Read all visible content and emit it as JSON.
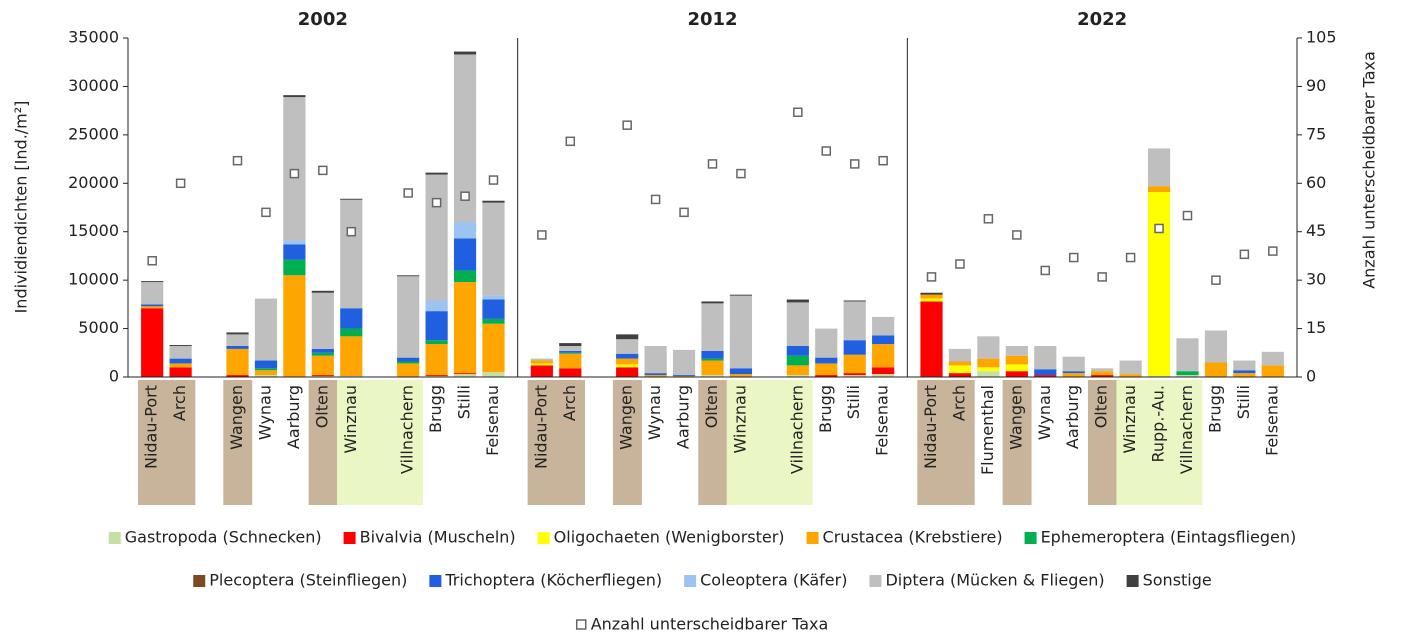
{
  "chart_data": {
    "type": "bar",
    "stacked": true,
    "ylabel": "Individiendichten [Ind./m²]",
    "y2label": "Anzahl unterscheidbarer Taxa",
    "ylim": [
      0,
      35000
    ],
    "yticks": [
      0,
      5000,
      10000,
      15000,
      20000,
      25000,
      30000,
      35000
    ],
    "y2lim": [
      0,
      105
    ],
    "y2ticks": [
      0,
      15,
      30,
      45,
      60,
      75,
      90,
      105
    ],
    "series": [
      {
        "name": "Gastropoda (Schnecken)",
        "color": "#c5e0a5"
      },
      {
        "name": "Bivalvia (Muscheln)",
        "color": "#ff0000"
      },
      {
        "name": "Oligochaeten (Wenigborster)",
        "color": "#ffff00"
      },
      {
        "name": "Crustacea (Krebstiere)",
        "color": "#ffa500"
      },
      {
        "name": "Ephemeroptera (Eintagsfliegen)",
        "color": "#00b050"
      },
      {
        "name": "Plecoptera (Steinfliegen)",
        "color": "#7b4a21"
      },
      {
        "name": "Trichoptera (Köcherfliegen)",
        "color": "#1f5fe0"
      },
      {
        "name": "Coleoptera (Käfer)",
        "color": "#9dc3f0"
      },
      {
        "name": "Diptera (Mücken & Fliegen)",
        "color": "#bfbfbf"
      },
      {
        "name": "Sonstige",
        "color": "#404040"
      }
    ],
    "taxa_series": {
      "name": "Anzahl unterscheidbarer Taxa",
      "axis": "y2",
      "color": "#666666"
    },
    "panels": [
      {
        "title": "2002",
        "categories": [
          "Nidau-Port",
          "Arch",
          null,
          "Wangen",
          "Wynau",
          "Aarburg",
          "Olten",
          "Winznau",
          null,
          "Villnachern",
          "Brugg",
          "Stilli",
          "Felsenau"
        ],
        "band_colors": [
          "#c8b49b",
          "#c8b49b",
          null,
          "#c8b49b",
          null,
          null,
          "#c8b49b",
          "#eaf6c4",
          "#eaf6c4",
          "#eaf6c4",
          null,
          null,
          null
        ],
        "values": [
          [
            0,
            0,
            null,
            0,
            200,
            0,
            100,
            100,
            null,
            0,
            100,
            300,
            500
          ],
          [
            7100,
            1000,
            null,
            200,
            0,
            0,
            100,
            0,
            null,
            0,
            100,
            100,
            0
          ],
          [
            0,
            0,
            null,
            0,
            0,
            0,
            0,
            0,
            null,
            0,
            0,
            0,
            0
          ],
          [
            200,
            400,
            null,
            2700,
            500,
            10500,
            2000,
            4100,
            null,
            1400,
            3200,
            9400,
            5000
          ],
          [
            0,
            0,
            null,
            0,
            200,
            1600,
            300,
            800,
            null,
            200,
            400,
            1200,
            500
          ],
          [
            0,
            0,
            null,
            0,
            0,
            0,
            0,
            0,
            null,
            0,
            0,
            0,
            0
          ],
          [
            200,
            500,
            null,
            300,
            800,
            1600,
            400,
            2100,
            null,
            400,
            3000,
            3300,
            2000
          ],
          [
            0,
            0,
            null,
            0,
            0,
            400,
            0,
            0,
            null,
            0,
            1100,
            1700,
            400
          ],
          [
            2300,
            1300,
            null,
            1200,
            6400,
            14800,
            5800,
            11200,
            null,
            8400,
            13000,
            17300,
            9600
          ],
          [
            100,
            100,
            null,
            200,
            0,
            200,
            200,
            100,
            null,
            100,
            200,
            300,
            200
          ]
        ],
        "taxa": [
          36,
          60,
          null,
          67,
          51,
          63,
          64,
          45,
          null,
          57,
          54,
          56,
          61
        ]
      },
      {
        "title": "2012",
        "categories": [
          "Nidau-Port",
          "Arch",
          null,
          "Wangen",
          "Wynau",
          "Aarburg",
          "Olten",
          "Winznau",
          null,
          "Villnachern",
          "Brugg",
          "Stilli",
          "Felsenau"
        ],
        "band_colors": [
          "#c8b49b",
          "#c8b49b",
          null,
          "#c8b49b",
          null,
          null,
          "#c8b49b",
          "#eaf6c4",
          "#eaf6c4",
          "#eaf6c4",
          null,
          null,
          null
        ],
        "values": [
          [
            0,
            0,
            null,
            0,
            0,
            0,
            200,
            0,
            null,
            200,
            0,
            200,
            300
          ],
          [
            1200,
            900,
            null,
            1000,
            0,
            0,
            0,
            0,
            null,
            0,
            200,
            200,
            700
          ],
          [
            200,
            0,
            null,
            300,
            0,
            0,
            0,
            0,
            null,
            0,
            0,
            0,
            0
          ],
          [
            300,
            1500,
            null,
            600,
            200,
            100,
            1500,
            300,
            null,
            1000,
            1200,
            1900,
            2400
          ],
          [
            0,
            100,
            null,
            0,
            0,
            0,
            200,
            0,
            null,
            1000,
            0,
            0,
            0
          ],
          [
            0,
            0,
            null,
            0,
            0,
            0,
            0,
            0,
            null,
            0,
            0,
            0,
            0
          ],
          [
            0,
            200,
            null,
            500,
            200,
            100,
            800,
            600,
            null,
            1000,
            600,
            1500,
            900
          ],
          [
            0,
            0,
            null,
            0,
            0,
            0,
            0,
            0,
            null,
            0,
            0,
            0,
            0
          ],
          [
            200,
            500,
            null,
            1500,
            2800,
            2600,
            4900,
            7500,
            null,
            4500,
            3000,
            4000,
            1900
          ],
          [
            0,
            300,
            null,
            500,
            0,
            0,
            200,
            100,
            null,
            300,
            0,
            100,
            0
          ]
        ],
        "taxa": [
          44,
          73,
          null,
          78,
          55,
          51,
          66,
          63,
          null,
          82,
          70,
          66,
          67
        ]
      },
      {
        "title": "2022",
        "categories": [
          "Nidau-Port",
          "Arch",
          "Flumenthal",
          "Wangen",
          "Wynau",
          "Aarburg",
          "Olten",
          "Winznau",
          "Rupp.-Au.",
          "Villnachern",
          "Brugg",
          "Stilli",
          "Felsenau"
        ],
        "band_colors": [
          "#c8b49b",
          "#c8b49b",
          null,
          "#c8b49b",
          null,
          null,
          "#c8b49b",
          "#eaf6c4",
          "#eaf6c4",
          "#eaf6c4",
          null,
          null,
          null
        ],
        "values": [
          [
            0,
            0,
            600,
            0,
            0,
            0,
            0,
            0,
            100,
            200,
            0,
            0,
            0
          ],
          [
            7800,
            400,
            0,
            600,
            200,
            0,
            200,
            0,
            0,
            0,
            0,
            0,
            0
          ],
          [
            300,
            800,
            400,
            700,
            0,
            0,
            0,
            0,
            19000,
            0,
            0,
            0,
            0
          ],
          [
            400,
            400,
            900,
            900,
            0,
            400,
            400,
            300,
            600,
            0,
            1500,
            400,
            1200
          ],
          [
            0,
            0,
            0,
            0,
            0,
            0,
            0,
            0,
            0,
            400,
            0,
            0,
            0
          ],
          [
            0,
            0,
            0,
            0,
            0,
            0,
            0,
            0,
            0,
            0,
            0,
            0,
            0
          ],
          [
            0,
            0,
            0,
            0,
            600,
            200,
            0,
            0,
            0,
            0,
            0,
            300,
            0
          ],
          [
            0,
            0,
            0,
            0,
            0,
            0,
            0,
            0,
            0,
            0,
            0,
            0,
            0
          ],
          [
            0,
            1300,
            2300,
            1000,
            2400,
            1500,
            300,
            1400,
            3900,
            3400,
            3300,
            1000,
            1400
          ],
          [
            200,
            0,
            0,
            0,
            0,
            0,
            0,
            0,
            0,
            0,
            0,
            0,
            0
          ]
        ],
        "taxa": [
          31,
          35,
          49,
          44,
          33,
          37,
          31,
          37,
          46,
          50,
          30,
          38,
          39
        ]
      }
    ]
  }
}
